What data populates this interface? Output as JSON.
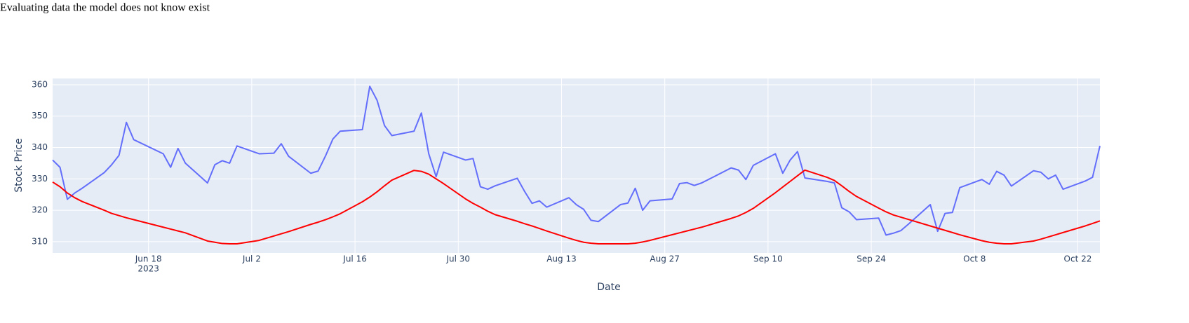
{
  "chart_data": {
    "type": "line",
    "title": "Evaluating data the model does not know exist",
    "x_label": "Date",
    "y_label": "Stock Price",
    "x_tick_year": "2023",
    "x": [
      "2023-06-05",
      "2023-06-06",
      "2023-06-07",
      "2023-06-08",
      "2023-06-09",
      "2023-06-12",
      "2023-06-13",
      "2023-06-14",
      "2023-06-15",
      "2023-06-16",
      "2023-06-20",
      "2023-06-21",
      "2023-06-22",
      "2023-06-23",
      "2023-06-26",
      "2023-06-27",
      "2023-06-28",
      "2023-06-29",
      "2023-06-30",
      "2023-07-03",
      "2023-07-05",
      "2023-07-06",
      "2023-07-07",
      "2023-07-10",
      "2023-07-11",
      "2023-07-12",
      "2023-07-13",
      "2023-07-14",
      "2023-07-17",
      "2023-07-18",
      "2023-07-19",
      "2023-07-20",
      "2023-07-21",
      "2023-07-24",
      "2023-07-25",
      "2023-07-26",
      "2023-07-27",
      "2023-07-28",
      "2023-07-31",
      "2023-08-01",
      "2023-08-02",
      "2023-08-03",
      "2023-08-04",
      "2023-08-07",
      "2023-08-08",
      "2023-08-09",
      "2023-08-10",
      "2023-08-11",
      "2023-08-14",
      "2023-08-15",
      "2023-08-16",
      "2023-08-17",
      "2023-08-18",
      "2023-08-21",
      "2023-08-22",
      "2023-08-23",
      "2023-08-24",
      "2023-08-25",
      "2023-08-28",
      "2023-08-29",
      "2023-08-30",
      "2023-08-31",
      "2023-09-01",
      "2023-09-05",
      "2023-09-06",
      "2023-09-07",
      "2023-09-08",
      "2023-09-11",
      "2023-09-12",
      "2023-09-13",
      "2023-09-14",
      "2023-09-15",
      "2023-09-18",
      "2023-09-19",
      "2023-09-20",
      "2023-09-21",
      "2023-09-22",
      "2023-09-25",
      "2023-09-26",
      "2023-09-27",
      "2023-09-28",
      "2023-09-29",
      "2023-10-02",
      "2023-10-03",
      "2023-10-04",
      "2023-10-05",
      "2023-10-06",
      "2023-10-09",
      "2023-10-10",
      "2023-10-11",
      "2023-10-12",
      "2023-10-13",
      "2023-10-16",
      "2023-10-17",
      "2023-10-18",
      "2023-10-19",
      "2023-10-20",
      "2023-10-23",
      "2023-10-24",
      "2023-10-25"
    ],
    "series": [
      {
        "color": "#636efa",
        "values": [
          336,
          333.7,
          323.5,
          325.5,
          327,
          332,
          334.5,
          337.5,
          348,
          342.5,
          338,
          333.7,
          339.7,
          335,
          328.7,
          334.5,
          335.8,
          335,
          340.5,
          338,
          338.2,
          341.2,
          337.2,
          331.8,
          332.5,
          337.3,
          342.7,
          345.2,
          345.7,
          359.5,
          355,
          347,
          343.8,
          345.2,
          351,
          338,
          330.7,
          338.5,
          336,
          336.5,
          327.5,
          326.7,
          327.8,
          330.2,
          326,
          322.2,
          323,
          321,
          324,
          321.8,
          320.3,
          316.8,
          316.4,
          321.8,
          322.3,
          327,
          320,
          323,
          323.6,
          328.5,
          328.8,
          327.9,
          328.7,
          333.5,
          332.8,
          329.8,
          334.3,
          338,
          331.8,
          336,
          338.7,
          330.3,
          329.2,
          328.7,
          320.8,
          319.5,
          317,
          317.5,
          312.1,
          312.7,
          313.5,
          315.5,
          321.8,
          313.3,
          319,
          319.3,
          327.2,
          329.8,
          328.3,
          332.4,
          331.2,
          327.7,
          332.6,
          332.1,
          330,
          331.2,
          326.7,
          329.3,
          330.5,
          340.5
        ]
      },
      {
        "color": "red",
        "values": [
          329,
          327.5,
          325.5,
          324,
          322.8,
          320,
          319,
          318.3,
          317.6,
          317,
          314.6,
          314,
          313.4,
          312.8,
          310.2,
          309.8,
          309.4,
          309.3,
          309.3,
          310.4,
          311.8,
          312.5,
          313.2,
          315.5,
          316.2,
          317,
          317.9,
          318.9,
          322.7,
          324.2,
          325.9,
          327.8,
          329.6,
          332.7,
          332.4,
          331.5,
          330,
          328.5,
          323.6,
          322.2,
          321,
          319.7,
          318.6,
          316.5,
          315.7,
          315,
          314.2,
          313.4,
          311.1,
          310.4,
          309.8,
          309.5,
          309.3,
          309.3,
          309.3,
          309.5,
          309.9,
          310.4,
          312.2,
          312.8,
          313.4,
          314,
          314.6,
          317.4,
          318.2,
          319.3,
          320.6,
          325.6,
          327.4,
          329.2,
          331,
          332.8,
          330.5,
          329.5,
          327.8,
          326,
          324.4,
          320.7,
          319.5,
          318.5,
          317.8,
          317.1,
          315,
          314.3,
          313.6,
          312.9,
          312.2,
          310.3,
          309.8,
          309.5,
          309.3,
          309.3,
          310.2,
          310.8,
          311.5,
          312.2,
          312.9,
          315,
          315.8,
          316.6
        ]
      }
    ],
    "xlim": [
      "2023-06-05",
      "2023-10-25"
    ],
    "xticks": [
      {
        "value": "2023-06-18",
        "label": "Jun 18"
      },
      {
        "value": "2023-07-02",
        "label": "Jul 2"
      },
      {
        "value": "2023-07-16",
        "label": "Jul 16"
      },
      {
        "value": "2023-07-30",
        "label": "Jul 30"
      },
      {
        "value": "2023-08-13",
        "label": "Aug 13"
      },
      {
        "value": "2023-08-27",
        "label": "Aug 27"
      },
      {
        "value": "2023-09-10",
        "label": "Sep 10"
      },
      {
        "value": "2023-09-24",
        "label": "Sep 24"
      },
      {
        "value": "2023-10-08",
        "label": "Oct 8"
      },
      {
        "value": "2023-10-22",
        "label": "Oct 22"
      }
    ],
    "ylim": [
      306.4,
      362
    ],
    "yticks": [
      310,
      320,
      330,
      340,
      350,
      360
    ],
    "grid": true,
    "background": "#e5ecf6"
  }
}
